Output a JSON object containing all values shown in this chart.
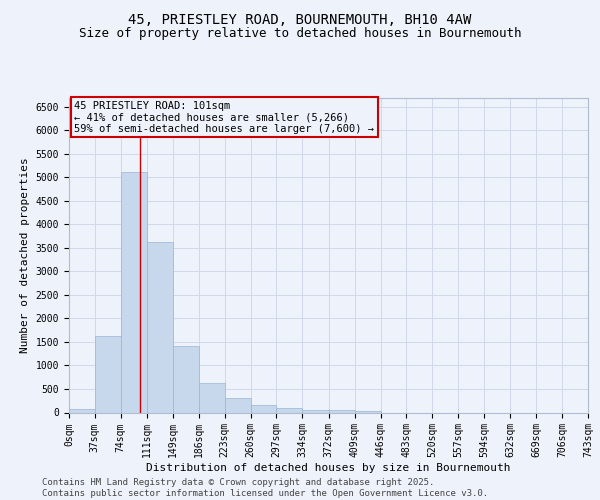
{
  "title_line1": "45, PRIESTLEY ROAD, BOURNEMOUTH, BH10 4AW",
  "title_line2": "Size of property relative to detached houses in Bournemouth",
  "xlabel": "Distribution of detached houses by size in Bournemouth",
  "ylabel": "Number of detached properties",
  "bar_color": "#c8d8ec",
  "bar_edgecolor": "#9ab4d4",
  "grid_color": "#d0d8ea",
  "background_color": "#eef2fa",
  "annotation_box_color": "#cc0000",
  "vline_color": "#cc0000",
  "annotation_text": "45 PRIESTLEY ROAD: 101sqm\n← 41% of detached houses are smaller (5,266)\n59% of semi-detached houses are larger (7,600) →",
  "property_size_sqm": 101,
  "bin_edges": [
    0,
    37,
    74,
    111,
    149,
    186,
    223,
    260,
    297,
    334,
    372,
    409,
    446,
    483,
    520,
    557,
    594,
    632,
    669,
    706,
    743
  ],
  "bin_counts": [
    70,
    1630,
    5120,
    3620,
    1420,
    620,
    310,
    150,
    95,
    55,
    45,
    30,
    0,
    0,
    0,
    0,
    0,
    0,
    0,
    0
  ],
  "xlim": [
    0,
    743
  ],
  "ylim": [
    0,
    6700
  ],
  "yticks": [
    0,
    500,
    1000,
    1500,
    2000,
    2500,
    3000,
    3500,
    4000,
    4500,
    5000,
    5500,
    6000,
    6500
  ],
  "footer_line1": "Contains HM Land Registry data © Crown copyright and database right 2025.",
  "footer_line2": "Contains public sector information licensed under the Open Government Licence v3.0.",
  "title_fontsize": 10,
  "subtitle_fontsize": 9,
  "axis_label_fontsize": 8,
  "tick_fontsize": 7,
  "annotation_fontsize": 7.5,
  "footer_fontsize": 6.5
}
